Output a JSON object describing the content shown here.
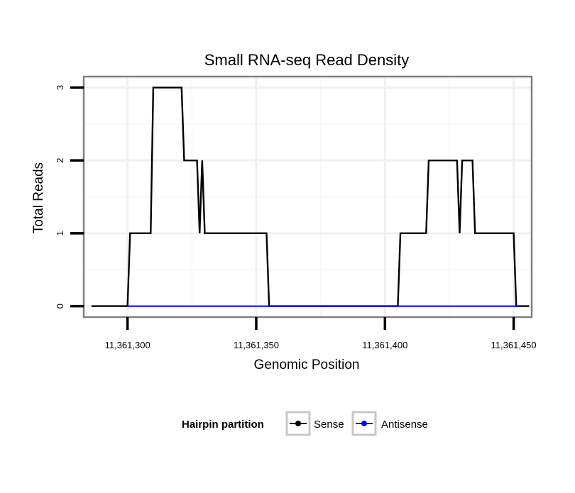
{
  "chart_data": {
    "type": "line",
    "title": "Small RNA-seq Read Density",
    "xlabel": "Genomic Position",
    "ylabel": "Total Reads",
    "xlim": [
      11361283,
      11361457
    ],
    "ylim": [
      -0.15,
      3.15
    ],
    "x_ticks": [
      11361300,
      11361350,
      11361400,
      11361450
    ],
    "x_tick_labels": [
      "11,361,300",
      "11,361,350",
      "11,361,400",
      "11,361,450"
    ],
    "y_ticks": [
      0,
      1,
      2,
      3
    ],
    "y_tick_labels": [
      "0",
      "1",
      "2",
      "3"
    ],
    "minor_x_gridlines": [
      11361325,
      11361375,
      11361425
    ],
    "minor_y_gridlines": [
      0.5,
      1.5,
      2.5
    ],
    "grid": true,
    "legend": {
      "title": "Hairpin partition",
      "position": "bottom",
      "entries": [
        "Sense",
        "Antisense"
      ]
    },
    "series": [
      {
        "name": "Sense",
        "color": "#000000",
        "x": [
          11361286,
          11361300,
          11361301,
          11361309,
          11361310,
          11361321,
          11361322,
          11361327,
          11361328,
          11361329,
          11361330,
          11361354,
          11361355,
          11361405,
          11361406,
          11361416,
          11361417,
          11361428,
          11361429,
          11361430,
          11361431,
          11361434,
          11361435,
          11361450,
          11361451,
          11361456
        ],
        "values": [
          0,
          0,
          1,
          1,
          3,
          3,
          2,
          2,
          1,
          2,
          1,
          1,
          0,
          0,
          1,
          1,
          2,
          2,
          1,
          2,
          2,
          2,
          1,
          1,
          0,
          0
        ]
      },
      {
        "name": "Antisense",
        "color": "#0000ff",
        "x": [
          11361300,
          11361355,
          11361405,
          11361452
        ],
        "values": [
          0,
          0,
          0,
          0
        ]
      }
    ]
  }
}
